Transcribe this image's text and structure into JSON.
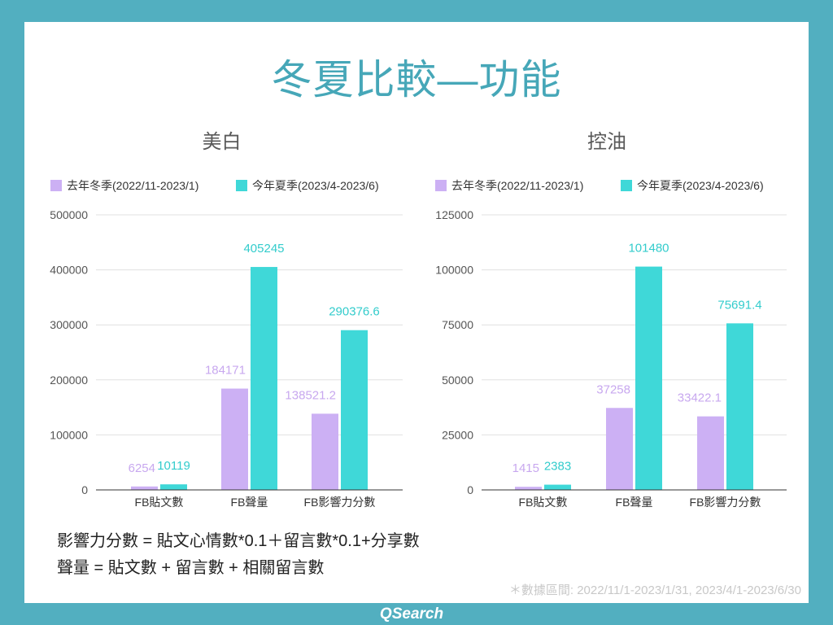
{
  "page": {
    "title": "冬夏比較—功能",
    "note": "＊數據區間: 2022/11/1-2023/1/31, 2023/4/1-2023/6/30",
    "brand": "QSearch"
  },
  "colors": {
    "frame": "#52afc0",
    "title": "#46a7b8"
  },
  "formulas": [
    "影響力分數 = 貼文心情數*0.1＋留言數*0.1+分享數",
    "聲量 = 貼文數 + 留言數 + 相關留言數"
  ],
  "chart_data": [
    {
      "type": "bar",
      "title": "美白",
      "categories": [
        "FB貼文數",
        "FB聲量",
        "FB影響力分數"
      ],
      "series": [
        {
          "name": "去年冬季(2022/11-2023/1)",
          "color": "#ccb0f4",
          "label_color": "#c8a8ef",
          "values": [
            6254,
            184171,
            138521.2
          ]
        },
        {
          "name": "今年夏季(2023/4-2023/6)",
          "color": "#3fd8d8",
          "label_color": "#33cccc",
          "values": [
            10119,
            405245,
            290376.6
          ]
        }
      ],
      "ylim": [
        0,
        500000
      ],
      "yticks": [
        0,
        100000,
        200000,
        300000,
        400000,
        500000
      ],
      "grid": true,
      "legend": "top"
    },
    {
      "type": "bar",
      "title": "控油",
      "categories": [
        "FB貼文數",
        "FB聲量",
        "FB影響力分數"
      ],
      "series": [
        {
          "name": "去年冬季(2022/11-2023/1)",
          "color": "#ccb0f4",
          "label_color": "#c8a8ef",
          "values": [
            1415,
            37258,
            33422.1
          ]
        },
        {
          "name": "今年夏季(2023/4-2023/6)",
          "color": "#3fd8d8",
          "label_color": "#33cccc",
          "values": [
            2383,
            101480,
            75691.4
          ]
        }
      ],
      "ylim": [
        0,
        125000
      ],
      "yticks": [
        0,
        25000,
        50000,
        75000,
        100000,
        125000
      ],
      "grid": true,
      "legend": "top"
    }
  ]
}
